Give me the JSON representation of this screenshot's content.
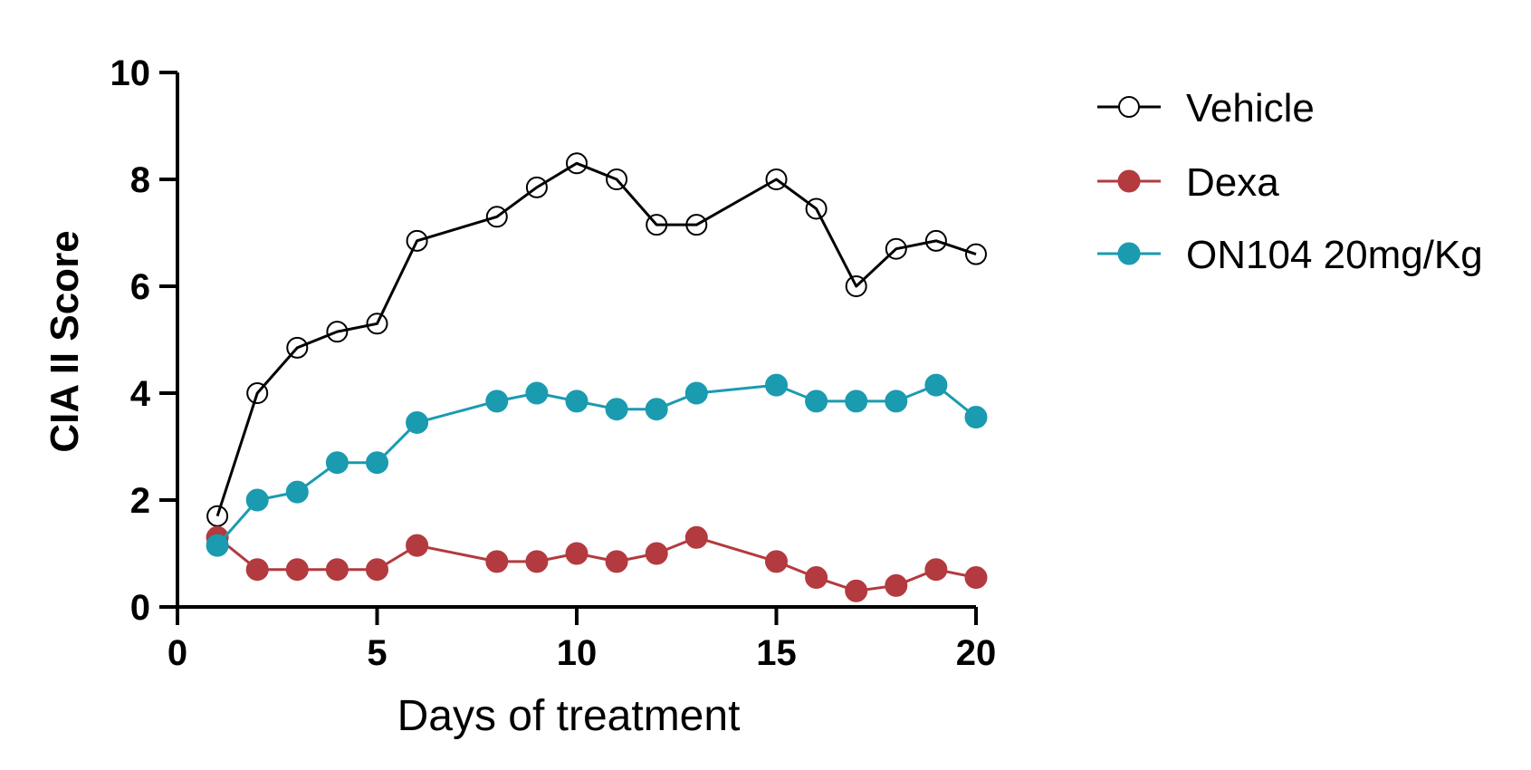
{
  "chart_data": {
    "type": "line",
    "title": "",
    "xlabel": "Days of treatment",
    "ylabel": "CIA II Score",
    "xlim": [
      0,
      20
    ],
    "ylim": [
      0,
      10
    ],
    "xticks": [
      0,
      5,
      10,
      15,
      20
    ],
    "yticks": [
      0,
      2,
      4,
      6,
      8,
      10
    ],
    "xtick_labels": [
      "0",
      "5",
      "10",
      "15",
      "20"
    ],
    "ytick_labels": [
      "0",
      "2",
      "4",
      "6",
      "8",
      "10"
    ],
    "grid": false,
    "legend_position": "top-right, outside plot",
    "series": [
      {
        "name": "Vehicle",
        "color": "#000000",
        "marker": "open-circle",
        "x": [
          1,
          2,
          3,
          4,
          5,
          6,
          8,
          9,
          10,
          11,
          12,
          13,
          15,
          16,
          17,
          18,
          19,
          20
        ],
        "y": [
          1.7,
          4.0,
          4.85,
          5.15,
          5.3,
          6.85,
          7.3,
          7.85,
          8.3,
          8.0,
          7.15,
          7.15,
          8.0,
          7.45,
          6.0,
          6.7,
          6.85,
          6.6
        ]
      },
      {
        "name": "Dexa",
        "color": "#b33a3f",
        "marker": "filled-circle",
        "x": [
          1,
          2,
          3,
          4,
          5,
          6,
          8,
          9,
          10,
          11,
          12,
          13,
          15,
          16,
          17,
          18,
          19,
          20
        ],
        "y": [
          1.3,
          0.7,
          0.7,
          0.7,
          0.7,
          1.15,
          0.85,
          0.85,
          1.0,
          0.85,
          1.0,
          1.3,
          0.85,
          0.55,
          0.3,
          0.4,
          0.7,
          0.55
        ]
      },
      {
        "name": "ON104 20mg/Kg",
        "color": "#1a9bb0",
        "marker": "filled-circle",
        "x": [
          1,
          2,
          3,
          4,
          5,
          6,
          8,
          9,
          10,
          11,
          12,
          13,
          15,
          16,
          17,
          18,
          19,
          20
        ],
        "y": [
          1.15,
          2.0,
          2.15,
          2.7,
          2.7,
          3.45,
          3.85,
          4.0,
          3.85,
          3.7,
          3.7,
          4.0,
          4.15,
          3.85,
          3.85,
          3.85,
          4.15,
          3.55
        ]
      }
    ]
  }
}
